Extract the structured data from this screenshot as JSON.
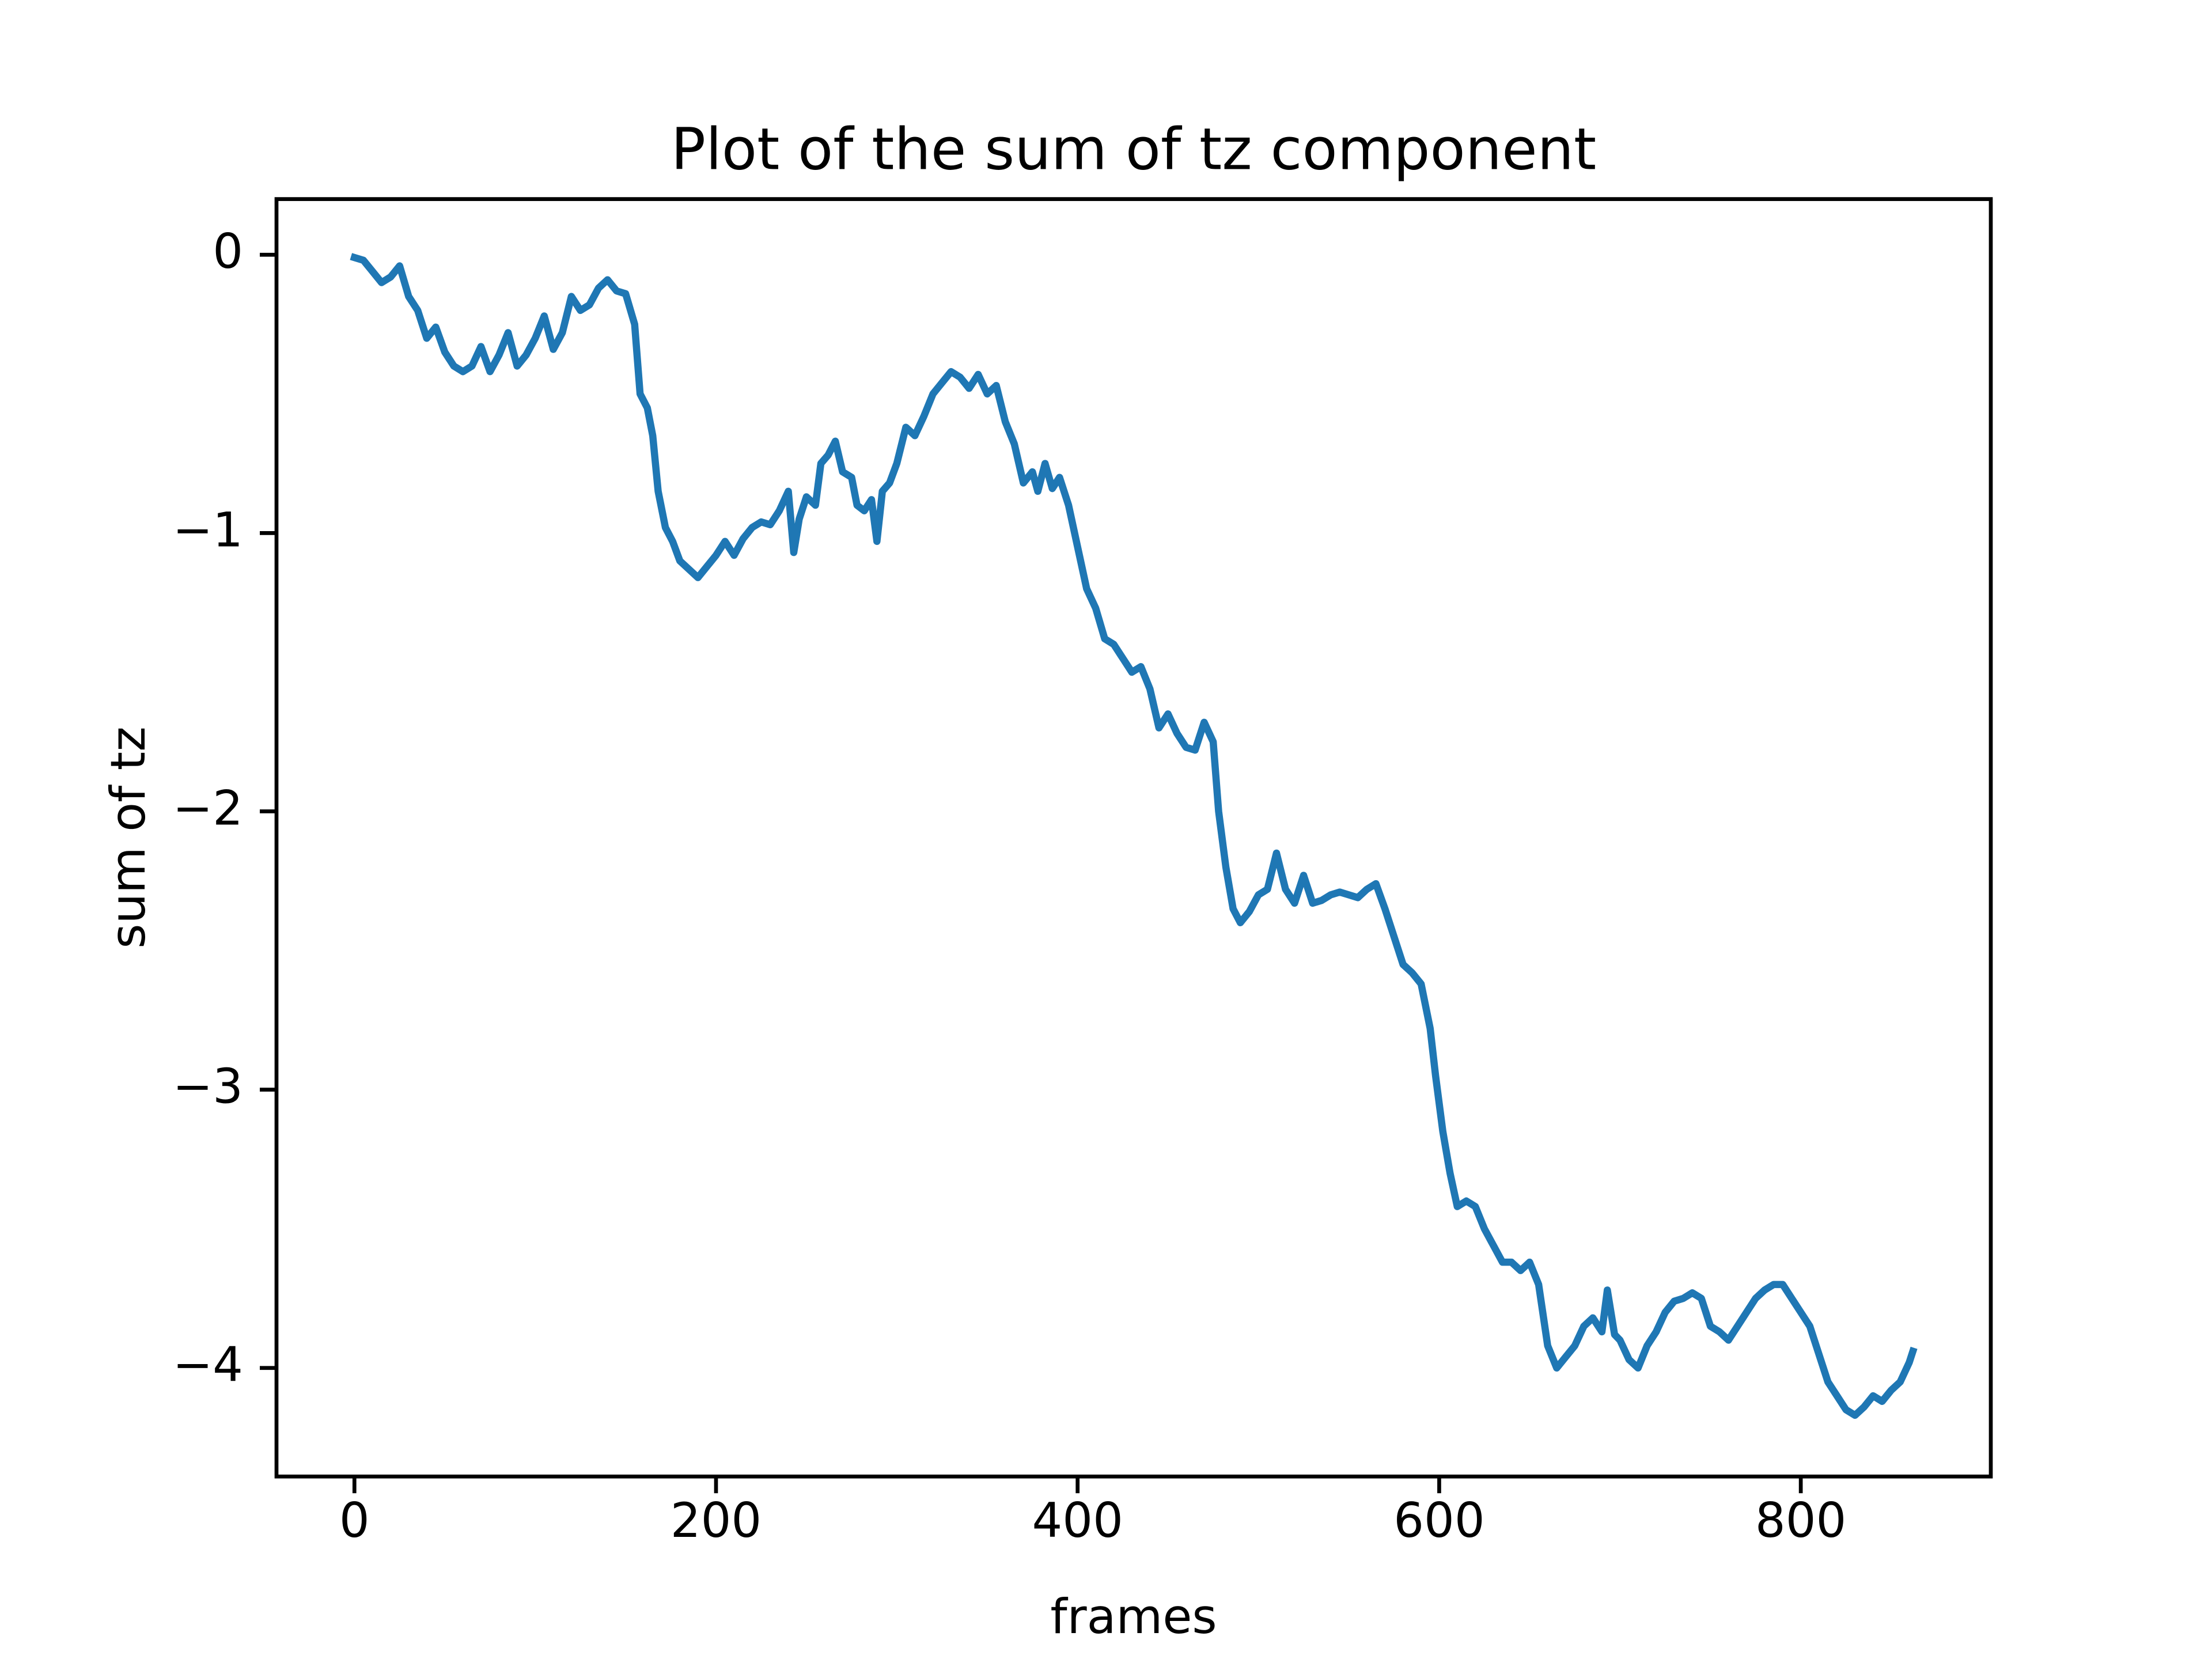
{
  "chart_data": {
    "type": "line",
    "title": "Plot of the sum of tz component",
    "x_label": "frames",
    "y_label": "sum of tz",
    "xlim": [
      -43.1,
      905.1
    ],
    "ylim": [
      -4.39,
      0.2
    ],
    "xticks": [
      0,
      200,
      400,
      600,
      800
    ],
    "yticks": [
      0,
      {
        "value": -1,
        "label": "−1"
      },
      {
        "value": -2,
        "label": "−2"
      },
      {
        "value": -3,
        "label": "−3"
      },
      {
        "value": -4,
        "label": "−4"
      }
    ],
    "grid": false,
    "series": [
      {
        "color": "#1f77b4",
        "x": [
          0,
          5,
          10,
          15,
          20,
          25,
          30,
          35,
          40,
          45,
          50,
          55,
          60,
          65,
          70,
          75,
          80,
          85,
          90,
          95,
          100,
          105,
          110,
          115,
          120,
          125,
          130,
          135,
          140,
          145,
          150,
          155,
          158,
          162,
          165,
          168,
          172,
          176,
          180,
          185,
          190,
          195,
          200,
          205,
          210,
          215,
          220,
          225,
          230,
          235,
          240,
          243,
          246,
          250,
          255,
          258,
          262,
          266,
          270,
          275,
          278,
          282,
          286,
          289,
          292,
          296,
          300,
          305,
          310,
          315,
          320,
          325,
          330,
          335,
          340,
          345,
          350,
          355,
          360,
          365,
          370,
          375,
          378,
          382,
          386,
          390,
          395,
          400,
          405,
          410,
          415,
          420,
          425,
          430,
          435,
          440,
          445,
          450,
          455,
          460,
          465,
          470,
          475,
          478,
          482,
          486,
          490,
          495,
          500,
          505,
          510,
          515,
          520,
          525,
          530,
          535,
          540,
          545,
          550,
          555,
          560,
          565,
          570,
          575,
          580,
          585,
          590,
          595,
          598,
          602,
          606,
          610,
          615,
          620,
          625,
          630,
          635,
          640,
          645,
          650,
          655,
          660,
          665,
          670,
          675,
          680,
          685,
          690,
          693,
          697,
          700,
          705,
          710,
          715,
          720,
          725,
          730,
          735,
          740,
          745,
          750,
          755,
          760,
          765,
          770,
          775,
          780,
          785,
          790,
          795,
          800,
          805,
          810,
          815,
          820,
          825,
          830,
          835,
          840,
          845,
          850,
          855,
          860,
          862
        ],
        "values": [
          -0.01,
          -0.02,
          -0.06,
          -0.1,
          -0.08,
          -0.04,
          -0.15,
          -0.2,
          -0.3,
          -0.26,
          -0.35,
          -0.4,
          -0.42,
          -0.4,
          -0.33,
          -0.42,
          -0.36,
          -0.28,
          -0.4,
          -0.36,
          -0.3,
          -0.22,
          -0.34,
          -0.28,
          -0.15,
          -0.2,
          -0.18,
          -0.12,
          -0.09,
          -0.13,
          -0.14,
          -0.25,
          -0.5,
          -0.55,
          -0.65,
          -0.85,
          -0.98,
          -1.03,
          -1.1,
          -1.13,
          -1.16,
          -1.12,
          -1.08,
          -1.03,
          -1.08,
          -1.02,
          -0.98,
          -0.96,
          -0.97,
          -0.92,
          -0.85,
          -1.07,
          -0.95,
          -0.87,
          -0.9,
          -0.75,
          -0.72,
          -0.67,
          -0.78,
          -0.8,
          -0.9,
          -0.92,
          -0.88,
          -1.03,
          -0.85,
          -0.82,
          -0.75,
          -0.62,
          -0.65,
          -0.58,
          -0.5,
          -0.46,
          -0.42,
          -0.44,
          -0.48,
          -0.43,
          -0.5,
          -0.47,
          -0.6,
          -0.68,
          -0.82,
          -0.78,
          -0.85,
          -0.75,
          -0.84,
          -0.8,
          -0.9,
          -1.05,
          -1.2,
          -1.27,
          -1.38,
          -1.4,
          -1.45,
          -1.5,
          -1.48,
          -1.56,
          -1.7,
          -1.65,
          -1.72,
          -1.77,
          -1.78,
          -1.68,
          -1.75,
          -2.0,
          -2.2,
          -2.35,
          -2.4,
          -2.36,
          -2.3,
          -2.28,
          -2.15,
          -2.28,
          -2.33,
          -2.23,
          -2.33,
          -2.32,
          -2.3,
          -2.29,
          -2.3,
          -2.31,
          -2.28,
          -2.26,
          -2.35,
          -2.45,
          -2.55,
          -2.58,
          -2.62,
          -2.78,
          -2.95,
          -3.15,
          -3.3,
          -3.42,
          -3.4,
          -3.42,
          -3.5,
          -3.56,
          -3.62,
          -3.62,
          -3.65,
          -3.62,
          -3.7,
          -3.92,
          -4.0,
          -3.96,
          -3.92,
          -3.85,
          -3.82,
          -3.87,
          -3.72,
          -3.88,
          -3.9,
          -3.97,
          -4.0,
          -3.92,
          -3.87,
          -3.8,
          -3.76,
          -3.75,
          -3.73,
          -3.75,
          -3.85,
          -3.87,
          -3.9,
          -3.85,
          -3.8,
          -3.75,
          -3.72,
          -3.7,
          -3.7,
          -3.75,
          -3.8,
          -3.85,
          -3.95,
          -4.05,
          -4.1,
          -4.15,
          -4.17,
          -4.14,
          -4.1,
          -4.12,
          -4.08,
          -4.05,
          -3.98,
          -3.94
        ]
      }
    ]
  }
}
